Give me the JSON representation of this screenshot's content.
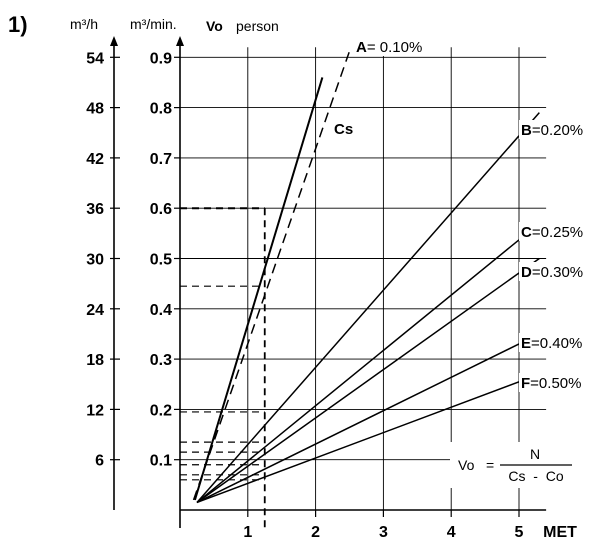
{
  "figure_label": "1)",
  "chart_data": {
    "type": "line",
    "x": {
      "unit_label": "MET",
      "ticks": [
        1,
        2,
        3,
        4,
        5
      ],
      "range": [
        0,
        5.4
      ]
    },
    "y_axes": {
      "m3_per_h": {
        "label": "m³/h",
        "ticks": [
          "6",
          "12",
          "18",
          "24",
          "30",
          "36",
          "42",
          "48",
          "54"
        ]
      },
      "m3_per_min": {
        "label": "m³/min.",
        "ticks": [
          "0.1",
          "0.2",
          "0.3",
          "0.4",
          "0.5",
          "0.6",
          "0.7",
          "0.8",
          "0.9"
        ]
      },
      "vo_label_bold": "Vo",
      "vo_label_rest": "person"
    },
    "ylim": [
      0,
      0.92
    ],
    "grid": true,
    "series": [
      {
        "name": "A",
        "pct": "= 0.10%",
        "x": [
          0.2,
          2.52
        ],
        "y": [
          0.02,
          0.92
        ],
        "style": "dashed"
      },
      {
        "name": "Cs",
        "x": [
          0.22,
          2.1
        ],
        "y": [
          0.02,
          0.86
        ],
        "style": "solid"
      },
      {
        "name": "B",
        "pct": "=0.20%",
        "x": [
          0.25,
          5.3
        ],
        "y": [
          0.015,
          0.79
        ],
        "style": "solid"
      },
      {
        "name": "C",
        "pct": "=0.25%",
        "x": [
          0.25,
          5.3
        ],
        "y": [
          0.015,
          0.57
        ],
        "style": "solid"
      },
      {
        "name": "D",
        "pct": "=0.30%",
        "x": [
          0.25,
          5.3
        ],
        "y": [
          0.015,
          0.5
        ],
        "style": "solid"
      },
      {
        "name": "E",
        "pct": "=0.40%",
        "x": [
          0.25,
          5.3
        ],
        "y": [
          0.015,
          0.35
        ],
        "style": "solid"
      },
      {
        "name": "F",
        "pct": "=0.50%",
        "x": [
          0.25,
          5.3
        ],
        "y": [
          0.015,
          0.27
        ],
        "style": "solid"
      }
    ],
    "marked_x": 1.25,
    "marked_levels": [
      0.6,
      0.445,
      0.195,
      0.135,
      0.115,
      0.09,
      0.07,
      0.06
    ],
    "formula": {
      "lhs": "Vo",
      "equals": "=",
      "numerator": "N",
      "denominator": "Cs  -  Co"
    }
  }
}
